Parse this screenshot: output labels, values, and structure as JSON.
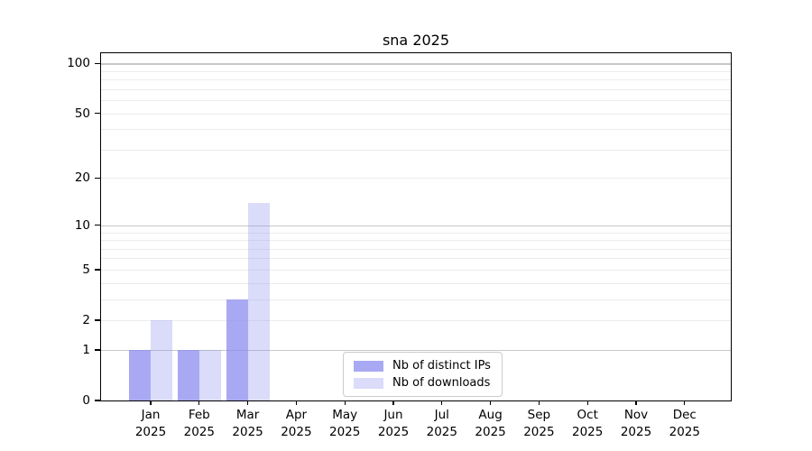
{
  "chart_data": {
    "type": "bar",
    "title": "sna 2025",
    "categories": [
      "Jan",
      "Feb",
      "Mar",
      "Apr",
      "May",
      "Jun",
      "Jul",
      "Aug",
      "Sep",
      "Oct",
      "Nov",
      "Dec"
    ],
    "x_year": "2025",
    "series": [
      {
        "name": "Nb of distinct IPs",
        "values": [
          1,
          1,
          3,
          0,
          0,
          0,
          0,
          0,
          0,
          0,
          0,
          0
        ]
      },
      {
        "name": "Nb of downloads",
        "values": [
          2,
          1,
          14,
          0,
          0,
          0,
          0,
          0,
          0,
          0,
          0,
          0
        ]
      }
    ],
    "xlabel": "",
    "ylabel": "",
    "y_scale": "log10(1+x)",
    "ylim": [
      0,
      115
    ],
    "y_ticks": {
      "values": [
        0,
        1,
        2,
        5,
        10,
        20,
        50,
        100
      ],
      "labels": [
        "0",
        "1",
        "2",
        "5",
        "10",
        "20",
        "50",
        "100"
      ]
    },
    "grid": {
      "major_values": [
        1,
        10,
        100
      ],
      "minor_values": [
        2,
        3,
        4,
        5,
        6,
        7,
        8,
        9,
        20,
        30,
        40,
        50,
        60,
        70,
        80,
        90
      ]
    },
    "legend_position": "inside-bottom-center"
  },
  "colors": {
    "bar_distinct_ips": "rgba(136,136,238,0.72)",
    "bar_downloads": "rgba(136,136,238,0.30)",
    "grid_major": "#c8c8c8",
    "grid_minor": "#ececec",
    "axis": "#000000",
    "legend_border": "#cccccc",
    "background": "#ffffff"
  }
}
